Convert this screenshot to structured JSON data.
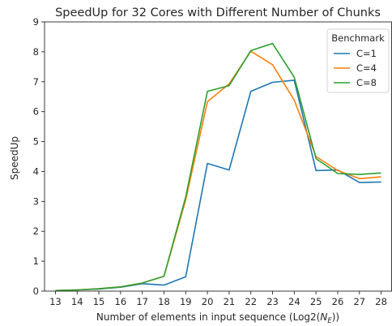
{
  "chart_data": {
    "type": "line",
    "title": "SpeedUp for 32 Cores with Different Number of Chunks",
    "xlabel_text": "Number of elements in input sequence (Log2(",
    "xlabel_var": "N",
    "xlabel_sub": "E",
    "xlabel_close": "))",
    "ylabel": "SpeedUp",
    "x": [
      13,
      14,
      15,
      16,
      17,
      18,
      19,
      20,
      21,
      22,
      23,
      24,
      25,
      26,
      27,
      28
    ],
    "xlim": [
      12.5,
      28.5
    ],
    "ylim": [
      0,
      9
    ],
    "xticks": [
      "13",
      "14",
      "15",
      "16",
      "17",
      "18",
      "19",
      "20",
      "21",
      "22",
      "23",
      "24",
      "25",
      "26",
      "27",
      "28"
    ],
    "yticks": [
      "0",
      "1",
      "2",
      "3",
      "4",
      "5",
      "6",
      "7",
      "8",
      "9"
    ],
    "grid": false,
    "legend": {
      "title": "Benchmark",
      "placement": "top-right"
    },
    "series": [
      {
        "name": "C=1",
        "color": "#1f77b4",
        "values": [
          0.02,
          0.04,
          0.07,
          0.13,
          0.25,
          0.2,
          0.48,
          4.27,
          4.05,
          6.68,
          6.98,
          7.05,
          4.03,
          4.05,
          3.63,
          3.65
        ]
      },
      {
        "name": "C=4",
        "color": "#ff7f0e",
        "values": [
          0.02,
          0.04,
          0.08,
          0.14,
          0.27,
          0.5,
          3.05,
          6.33,
          6.93,
          8.02,
          7.57,
          6.38,
          4.5,
          4.03,
          3.76,
          3.82
        ]
      },
      {
        "name": "C=8",
        "color": "#2ca02c",
        "values": [
          0.02,
          0.04,
          0.08,
          0.14,
          0.27,
          0.5,
          3.15,
          6.68,
          6.87,
          8.04,
          8.28,
          7.15,
          4.43,
          3.93,
          3.9,
          3.95
        ]
      }
    ]
  }
}
